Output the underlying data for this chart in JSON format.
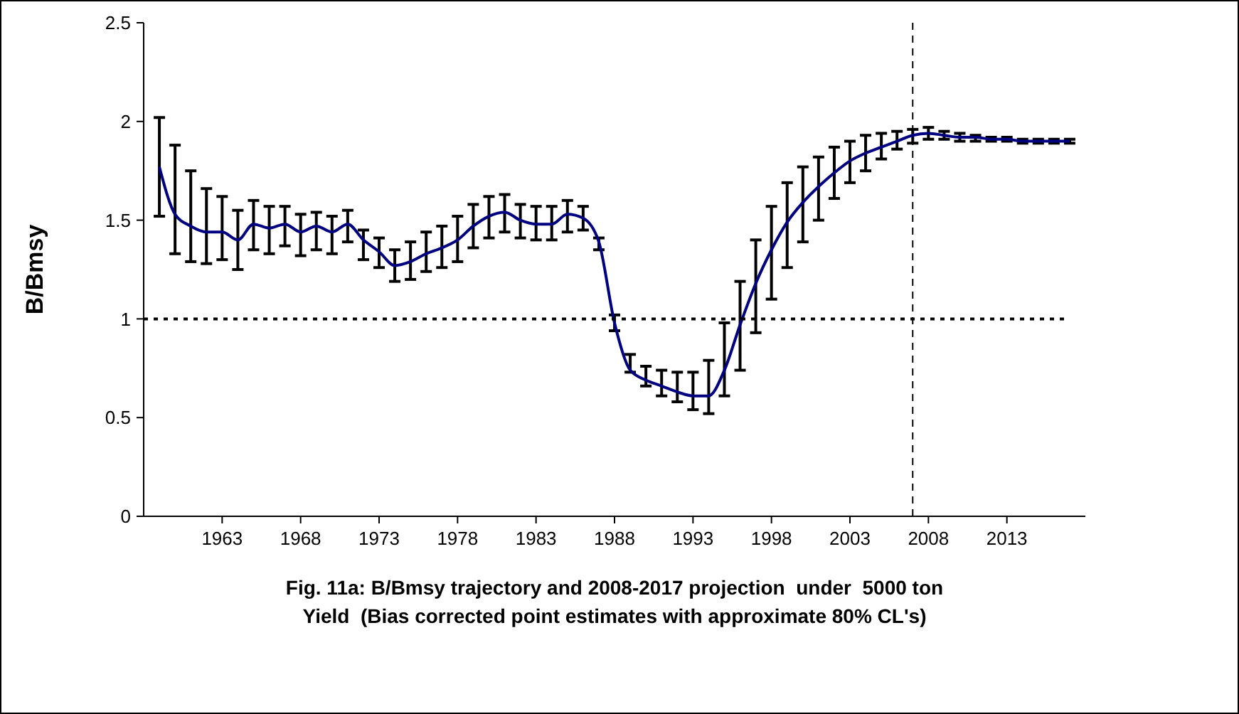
{
  "chart_data": {
    "type": "line",
    "title": "Fig. 11a: B/Bmsy trajectory and 2008-2017 projection  under  5000 ton Yield  (Bias corrected point estimates with approximate 80% CL's)",
    "ylabel": "B/Bmsy",
    "x": [
      1959,
      1960,
      1961,
      1962,
      1963,
      1964,
      1965,
      1966,
      1967,
      1968,
      1969,
      1970,
      1971,
      1972,
      1973,
      1974,
      1975,
      1976,
      1977,
      1978,
      1979,
      1980,
      1981,
      1982,
      1983,
      1984,
      1985,
      1986,
      1987,
      1988,
      1989,
      1990,
      1991,
      1992,
      1993,
      1994,
      1995,
      1996,
      1997,
      1998,
      1999,
      2000,
      2001,
      2002,
      2003,
      2004,
      2005,
      2006,
      2007,
      2008,
      2009,
      2010,
      2011,
      2012,
      2013,
      2014,
      2015,
      2016,
      2017
    ],
    "series": [
      {
        "color": "#000080",
        "values": [
          1.77,
          1.53,
          1.47,
          1.44,
          1.44,
          1.4,
          1.48,
          1.46,
          1.48,
          1.44,
          1.47,
          1.44,
          1.48,
          1.4,
          1.34,
          1.27,
          1.29,
          1.33,
          1.36,
          1.4,
          1.47,
          1.52,
          1.54,
          1.5,
          1.48,
          1.48,
          1.53,
          1.51,
          1.39,
          0.98,
          0.74,
          0.69,
          0.66,
          0.63,
          0.61,
          0.61,
          0.74,
          0.97,
          1.18,
          1.35,
          1.49,
          1.59,
          1.67,
          1.74,
          1.8,
          1.84,
          1.87,
          1.9,
          1.93,
          1.94,
          1.93,
          1.92,
          1.92,
          1.91,
          1.91,
          1.9,
          1.9,
          1.9,
          1.9
        ],
        "errors": [
          [
            1.52,
            2.02
          ],
          [
            1.33,
            1.88
          ],
          [
            1.29,
            1.75
          ],
          [
            1.28,
            1.66
          ],
          [
            1.3,
            1.62
          ],
          [
            1.25,
            1.55
          ],
          [
            1.35,
            1.6
          ],
          [
            1.33,
            1.57
          ],
          [
            1.37,
            1.57
          ],
          [
            1.32,
            1.53
          ],
          [
            1.35,
            1.54
          ],
          [
            1.33,
            1.52
          ],
          [
            1.39,
            1.55
          ],
          [
            1.3,
            1.45
          ],
          [
            1.26,
            1.41
          ],
          [
            1.19,
            1.35
          ],
          [
            1.2,
            1.39
          ],
          [
            1.24,
            1.44
          ],
          [
            1.26,
            1.47
          ],
          [
            1.29,
            1.52
          ],
          [
            1.36,
            1.58
          ],
          [
            1.41,
            1.62
          ],
          [
            1.44,
            1.63
          ],
          [
            1.41,
            1.58
          ],
          [
            1.4,
            1.57
          ],
          [
            1.4,
            1.57
          ],
          [
            1.44,
            1.6
          ],
          [
            1.45,
            1.57
          ],
          [
            1.35,
            1.41
          ],
          [
            0.94,
            1.02
          ],
          [
            0.73,
            0.82
          ],
          [
            0.66,
            0.76
          ],
          [
            0.61,
            0.74
          ],
          [
            0.58,
            0.73
          ],
          [
            0.54,
            0.73
          ],
          [
            0.52,
            0.79
          ],
          [
            0.61,
            0.98
          ],
          [
            0.74,
            1.19
          ],
          [
            0.93,
            1.4
          ],
          [
            1.1,
            1.57
          ],
          [
            1.26,
            1.69
          ],
          [
            1.39,
            1.77
          ],
          [
            1.5,
            1.82
          ],
          [
            1.61,
            1.87
          ],
          [
            1.69,
            1.9
          ],
          [
            1.75,
            1.93
          ],
          [
            1.81,
            1.94
          ],
          [
            1.86,
            1.95
          ],
          [
            1.89,
            1.96
          ],
          [
            1.91,
            1.97
          ],
          [
            1.91,
            1.95
          ],
          [
            1.9,
            1.94
          ],
          [
            1.9,
            1.93
          ],
          [
            1.9,
            1.92
          ],
          [
            1.9,
            1.92
          ],
          [
            1.89,
            1.91
          ],
          [
            1.89,
            1.91
          ],
          [
            1.89,
            1.91
          ],
          [
            1.89,
            1.91
          ]
        ]
      }
    ],
    "xlim": [
      1958,
      2018
    ],
    "xticks": [
      1963,
      1968,
      1973,
      1978,
      1983,
      1988,
      1993,
      1998,
      2003,
      2008,
      2013
    ],
    "ylim": [
      0,
      2.5
    ],
    "yticks": [
      0,
      0.5,
      1,
      1.5,
      2,
      2.5
    ],
    "ref_lines": [
      {
        "axis": "y",
        "value": 1,
        "line_style": "dotted",
        "color": "#000000"
      },
      {
        "axis": "x",
        "value": 2007,
        "line_style": "dashed",
        "color": "#000000"
      }
    ],
    "grid": false,
    "marker": "none",
    "line_style": "solid"
  }
}
